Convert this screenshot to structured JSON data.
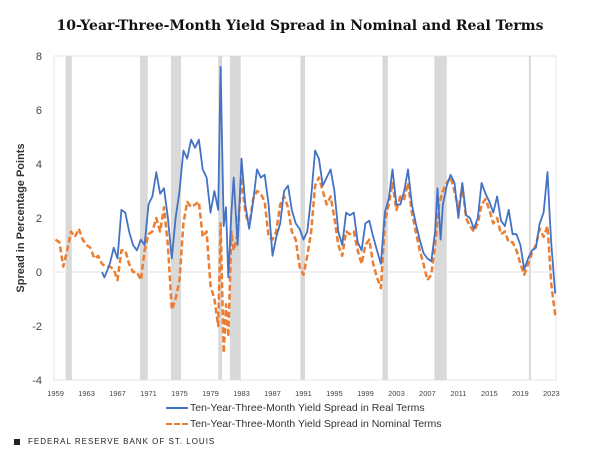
{
  "chart_data": {
    "type": "line",
    "title": "10-Year-Three-Month Yield Spread in Nominal and Real Terms",
    "xlabel": "",
    "ylabel": "Spread in Percentage Points",
    "xlim": [
      1958.8,
      2023.6
    ],
    "ylim": [
      -4,
      8
    ],
    "yticks": [
      -4,
      -2,
      0,
      2,
      4,
      6,
      8
    ],
    "xticks": [
      1959,
      1963,
      1967,
      1971,
      1975,
      1979,
      1983,
      1987,
      1991,
      1995,
      1999,
      2003,
      2007,
      2011,
      2015,
      2019,
      2023
    ],
    "grid": false,
    "legend_position": "bottom",
    "recessions": [
      [
        1960.3,
        1961.1
      ],
      [
        1969.9,
        1970.9
      ],
      [
        1973.9,
        1975.2
      ],
      [
        1980.0,
        1980.5
      ],
      [
        1981.5,
        1982.9
      ],
      [
        1990.6,
        1991.2
      ],
      [
        2001.2,
        2001.9
      ],
      [
        2007.9,
        2009.5
      ],
      [
        2020.1,
        2020.3
      ]
    ],
    "series": [
      {
        "name": "Ten-Year-Three-Month Yield Spread in Real Terms",
        "color": "#4472c4",
        "style": "solid",
        "points": [
          [
            1965,
            0
          ],
          [
            1965.3,
            -0.2
          ],
          [
            1966,
            0.3
          ],
          [
            1966.5,
            0.9
          ],
          [
            1967,
            0.5
          ],
          [
            1967.5,
            2.3
          ],
          [
            1968,
            2.2
          ],
          [
            1968.5,
            1.5
          ],
          [
            1969,
            1.0
          ],
          [
            1969.5,
            0.8
          ],
          [
            1970,
            1.2
          ],
          [
            1970.5,
            1.0
          ],
          [
            1971,
            2.5
          ],
          [
            1971.5,
            2.8
          ],
          [
            1972,
            3.7
          ],
          [
            1972.5,
            2.9
          ],
          [
            1973,
            3.1
          ],
          [
            1973.5,
            2.0
          ],
          [
            1974,
            0.5
          ],
          [
            1974.5,
            2.0
          ],
          [
            1975,
            3.0
          ],
          [
            1975.5,
            4.5
          ],
          [
            1976,
            4.2
          ],
          [
            1976.5,
            4.9
          ],
          [
            1977,
            4.6
          ],
          [
            1977.5,
            4.9
          ],
          [
            1978,
            3.8
          ],
          [
            1978.5,
            3.5
          ],
          [
            1979,
            2.2
          ],
          [
            1979.5,
            3.0
          ],
          [
            1980,
            2.3
          ],
          [
            1980.3,
            7.6
          ],
          [
            1980.7,
            1.7
          ],
          [
            1981,
            2.4
          ],
          [
            1981.3,
            -0.2
          ],
          [
            1981.7,
            2.2
          ],
          [
            1982,
            3.5
          ],
          [
            1982.5,
            1.0
          ],
          [
            1983,
            4.2
          ],
          [
            1983.5,
            2.5
          ],
          [
            1984,
            1.6
          ],
          [
            1984.5,
            2.6
          ],
          [
            1985,
            3.8
          ],
          [
            1985.5,
            3.5
          ],
          [
            1986,
            3.6
          ],
          [
            1986.5,
            2.5
          ],
          [
            1987,
            0.6
          ],
          [
            1987.5,
            1.3
          ],
          [
            1988,
            1.8
          ],
          [
            1988.5,
            3.0
          ],
          [
            1989,
            3.2
          ],
          [
            1989.5,
            2.3
          ],
          [
            1990,
            1.8
          ],
          [
            1990.5,
            1.6
          ],
          [
            1991,
            1.2
          ],
          [
            1991.5,
            1.5
          ],
          [
            1992,
            2.8
          ],
          [
            1992.5,
            4.5
          ],
          [
            1993,
            4.2
          ],
          [
            1993.5,
            3.2
          ],
          [
            1994,
            3.5
          ],
          [
            1994.5,
            3.8
          ],
          [
            1995,
            3.0
          ],
          [
            1995.5,
            1.5
          ],
          [
            1996,
            1.0
          ],
          [
            1996.5,
            2.2
          ],
          [
            1997,
            2.1
          ],
          [
            1997.5,
            2.2
          ],
          [
            1998,
            1.1
          ],
          [
            1998.5,
            0.8
          ],
          [
            1999,
            1.8
          ],
          [
            1999.5,
            1.9
          ],
          [
            2000,
            1.3
          ],
          [
            2000.5,
            0.8
          ],
          [
            2001,
            0.3
          ],
          [
            2001.5,
            2.2
          ],
          [
            2002,
            2.7
          ],
          [
            2002.5,
            3.8
          ],
          [
            2003,
            2.5
          ],
          [
            2003.5,
            2.5
          ],
          [
            2004,
            3.0
          ],
          [
            2004.5,
            3.8
          ],
          [
            2005,
            2.5
          ],
          [
            2005.5,
            1.8
          ],
          [
            2006,
            1.2
          ],
          [
            2006.5,
            0.7
          ],
          [
            2007,
            0.5
          ],
          [
            2007.5,
            0.4
          ],
          [
            2008,
            1.5
          ],
          [
            2008.3,
            3.1
          ],
          [
            2008.7,
            1.2
          ],
          [
            2009,
            2.5
          ],
          [
            2009.5,
            3.2
          ],
          [
            2010,
            3.6
          ],
          [
            2010.5,
            3.3
          ],
          [
            2011,
            2.0
          ],
          [
            2011.5,
            3.3
          ],
          [
            2012,
            2.1
          ],
          [
            2012.5,
            2.0
          ],
          [
            2013,
            1.6
          ],
          [
            2013.5,
            2.0
          ],
          [
            2014,
            3.3
          ],
          [
            2014.5,
            2.9
          ],
          [
            2015,
            2.6
          ],
          [
            2015.5,
            2.2
          ],
          [
            2016,
            2.8
          ],
          [
            2016.5,
            1.9
          ],
          [
            2017,
            1.7
          ],
          [
            2017.5,
            2.3
          ],
          [
            2018,
            1.4
          ],
          [
            2018.5,
            1.4
          ],
          [
            2019,
            1.0
          ],
          [
            2019.5,
            0.1
          ],
          [
            2020,
            0.5
          ],
          [
            2020.5,
            0.8
          ],
          [
            2021,
            0.9
          ],
          [
            2021.5,
            1.8
          ],
          [
            2022,
            2.2
          ],
          [
            2022.5,
            3.7
          ],
          [
            2022.8,
            2.0
          ],
          [
            2023,
            1.0
          ],
          [
            2023.5,
            -0.8
          ]
        ]
      },
      {
        "name": "Ten-Year-Three-Month Yield Spread in Nominal Terms",
        "color": "#ed7d31",
        "style": "dashed",
        "points": [
          [
            1959,
            1.2
          ],
          [
            1959.5,
            1.1
          ],
          [
            1960,
            0.2
          ],
          [
            1960.5,
            0.8
          ],
          [
            1961,
            1.5
          ],
          [
            1961.5,
            1.3
          ],
          [
            1962,
            1.6
          ],
          [
            1962.5,
            1.2
          ],
          [
            1963,
            1.0
          ],
          [
            1963.5,
            0.9
          ],
          [
            1964,
            0.5
          ],
          [
            1964.5,
            0.6
          ],
          [
            1965,
            0.3
          ],
          [
            1965.5,
            0.2
          ],
          [
            1966,
            0.2
          ],
          [
            1966.5,
            0.1
          ],
          [
            1967,
            -0.3
          ],
          [
            1967.5,
            0.8
          ],
          [
            1968,
            0.8
          ],
          [
            1968.5,
            0.3
          ],
          [
            1969,
            0.0
          ],
          [
            1969.5,
            0.0
          ],
          [
            1970,
            -0.3
          ],
          [
            1970.5,
            0.8
          ],
          [
            1971,
            1.4
          ],
          [
            1971.5,
            1.5
          ],
          [
            1972,
            2.0
          ],
          [
            1972.5,
            1.5
          ],
          [
            1973,
            2.4
          ],
          [
            1973.5,
            1.0
          ],
          [
            1974,
            -1.4
          ],
          [
            1974.5,
            -1.0
          ],
          [
            1975,
            -0.3
          ],
          [
            1975.5,
            1.8
          ],
          [
            1976,
            2.6
          ],
          [
            1976.5,
            2.4
          ],
          [
            1977,
            2.5
          ],
          [
            1977.5,
            2.6
          ],
          [
            1978,
            1.3
          ],
          [
            1978.5,
            1.5
          ],
          [
            1979,
            -0.5
          ],
          [
            1979.5,
            -1.0
          ],
          [
            1980,
            -2.0
          ],
          [
            1980.3,
            1.8
          ],
          [
            1980.7,
            -3.0
          ],
          [
            1981,
            -1.2
          ],
          [
            1981.3,
            -2.4
          ],
          [
            1981.7,
            1.5
          ],
          [
            1982,
            0.8
          ],
          [
            1982.5,
            1.4
          ],
          [
            1983,
            3.5
          ],
          [
            1983.5,
            2.2
          ],
          [
            1984,
            1.7
          ],
          [
            1984.5,
            2.7
          ],
          [
            1985,
            3.0
          ],
          [
            1985.5,
            2.9
          ],
          [
            1986,
            2.6
          ],
          [
            1986.5,
            1.3
          ],
          [
            1987,
            1.2
          ],
          [
            1987.5,
            1.5
          ],
          [
            1988,
            2.5
          ],
          [
            1988.5,
            2.8
          ],
          [
            1989,
            2.4
          ],
          [
            1989.5,
            1.5
          ],
          [
            1990,
            1.2
          ],
          [
            1990.5,
            0.2
          ],
          [
            1991,
            -0.1
          ],
          [
            1991.5,
            0.6
          ],
          [
            1992,
            1.5
          ],
          [
            1992.5,
            3.2
          ],
          [
            1993,
            3.5
          ],
          [
            1993.5,
            3.0
          ],
          [
            1994,
            2.5
          ],
          [
            1994.5,
            2.8
          ],
          [
            1995,
            2.0
          ],
          [
            1995.5,
            1.0
          ],
          [
            1996,
            0.6
          ],
          [
            1996.5,
            1.5
          ],
          [
            1997,
            1.4
          ],
          [
            1997.5,
            1.5
          ],
          [
            1998,
            0.8
          ],
          [
            1998.5,
            0.3
          ],
          [
            1999,
            1.0
          ],
          [
            1999.5,
            1.2
          ],
          [
            2000,
            0.3
          ],
          [
            2000.5,
            -0.2
          ],
          [
            2001,
            -0.6
          ],
          [
            2001.5,
            1.8
          ],
          [
            2002,
            2.5
          ],
          [
            2002.5,
            3.3
          ],
          [
            2003,
            2.3
          ],
          [
            2003.5,
            2.8
          ],
          [
            2004,
            2.7
          ],
          [
            2004.5,
            3.3
          ],
          [
            2005,
            2.2
          ],
          [
            2005.5,
            1.5
          ],
          [
            2006,
            0.8
          ],
          [
            2006.5,
            0.3
          ],
          [
            2007,
            -0.3
          ],
          [
            2007.5,
            -0.1
          ],
          [
            2008,
            1.0
          ],
          [
            2008.5,
            2.5
          ],
          [
            2009,
            3.0
          ],
          [
            2009.5,
            3.3
          ],
          [
            2010,
            3.5
          ],
          [
            2010.5,
            3.0
          ],
          [
            2011,
            2.3
          ],
          [
            2011.5,
            3.2
          ],
          [
            2012,
            2.0
          ],
          [
            2012.5,
            1.7
          ],
          [
            2013,
            1.5
          ],
          [
            2013.5,
            1.8
          ],
          [
            2014,
            2.5
          ],
          [
            2014.5,
            2.7
          ],
          [
            2015,
            2.3
          ],
          [
            2015.5,
            1.8
          ],
          [
            2016,
            2.0
          ],
          [
            2016.5,
            1.4
          ],
          [
            2017,
            1.5
          ],
          [
            2017.5,
            1.1
          ],
          [
            2018,
            1.1
          ],
          [
            2018.5,
            0.8
          ],
          [
            2019,
            0.3
          ],
          [
            2019.5,
            -0.1
          ],
          [
            2020,
            0.3
          ],
          [
            2020.5,
            0.7
          ],
          [
            2021,
            1.0
          ],
          [
            2021.5,
            1.6
          ],
          [
            2022,
            1.3
          ],
          [
            2022.5,
            1.7
          ],
          [
            2023,
            -0.5
          ],
          [
            2023.5,
            -1.6
          ]
        ]
      }
    ]
  },
  "footer": "FEDERAL RESERVE BANK OF ST. LOUIS"
}
